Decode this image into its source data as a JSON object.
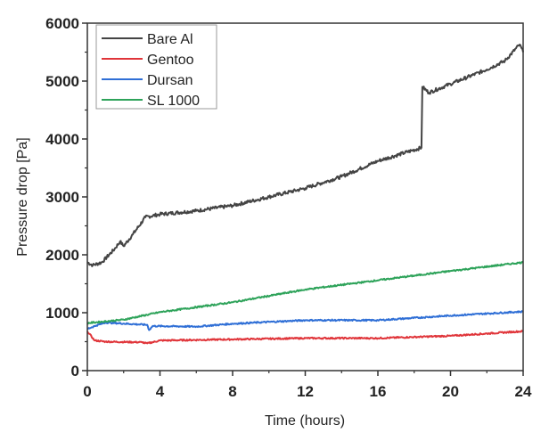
{
  "chart_data": {
    "type": "line",
    "title": "",
    "xlabel": "Time (hours)",
    "ylabel": "Pressure drop [Pa]",
    "xlim": [
      0,
      24
    ],
    "ylim": [
      0,
      6000
    ],
    "xticks": [
      0,
      4,
      8,
      12,
      16,
      20,
      24
    ],
    "yticks": [
      0,
      1000,
      2000,
      3000,
      4000,
      5000,
      6000
    ],
    "grid": false,
    "legend_position": "top-left",
    "series": [
      {
        "name": "Bare Al",
        "color": "#444444",
        "x": [
          0,
          0.3,
          0.8,
          1.5,
          1.8,
          2.0,
          2.5,
          3.2,
          4,
          6,
          8,
          10,
          12,
          14,
          16,
          18.4,
          18.45,
          18.8,
          20,
          22,
          23,
          23.8,
          24
        ],
        "y": [
          1870,
          1820,
          1870,
          2100,
          2230,
          2150,
          2350,
          2650,
          2700,
          2760,
          2850,
          3000,
          3150,
          3350,
          3620,
          3850,
          4900,
          4800,
          4950,
          5200,
          5350,
          5630,
          5500
        ]
      },
      {
        "name": "Gentoo",
        "color": "#e0353a",
        "x": [
          0,
          0.4,
          1,
          3,
          3.3,
          4,
          8,
          12,
          16,
          20,
          24
        ],
        "y": [
          680,
          520,
          500,
          490,
          470,
          520,
          540,
          560,
          560,
          600,
          680
        ]
      },
      {
        "name": "Dursan",
        "color": "#2f6fd6",
        "x": [
          0,
          0.5,
          1,
          3.3,
          3.4,
          3.6,
          6,
          8,
          12,
          16,
          20,
          24
        ],
        "y": [
          720,
          780,
          830,
          790,
          700,
          770,
          760,
          810,
          870,
          870,
          950,
          1020
        ]
      },
      {
        "name": "SL 1000",
        "color": "#2ea35a",
        "x": [
          0,
          2,
          4,
          8,
          12,
          16,
          20,
          24
        ],
        "y": [
          820,
          880,
          1010,
          1180,
          1400,
          1560,
          1720,
          1870
        ]
      }
    ]
  }
}
